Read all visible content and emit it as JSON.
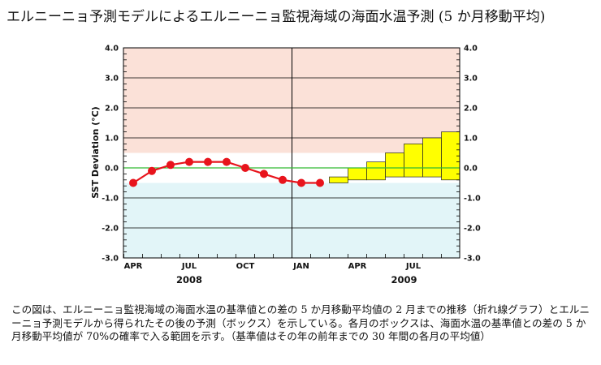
{
  "title": "エルニーニョ予測モデルによるエルニーニョ監視海域の海面水温予測 (5 か月移動平均)",
  "caption": "この図は、エルニーニョ監視海域の海面水温の基準値との差の 5 か月移動平均値の 2 月までの推移（折れ線グラフ）とエルニーニョ予測モデルから得られたその後の予測（ボックス）を示している。各月のボックスは、海面水温の基準値との差の 5 か月移動平均値が 70%の確率で入る範囲を示す。（基準値はその年の前年までの 30 年間の各月の平均値）",
  "colors": {
    "warm_band": "#fbe1d8",
    "cold_band": "#e2f5f8",
    "observed": "#e8141c",
    "forecast_box": "#ffff00",
    "zero_line": "#33bb33",
    "grid": "#000000"
  },
  "chart_data": {
    "type": "line",
    "ylabel": "SST Deviation (°C)",
    "ylim": [
      -3.0,
      4.0
    ],
    "y_ticks": [
      "4.0",
      "3.0",
      "2.0",
      "1.0",
      "0.0",
      "-1.0",
      "-2.0",
      "-3.0"
    ],
    "y_tick_values": [
      4,
      3,
      2,
      1,
      0,
      -1,
      -2,
      -3
    ],
    "x_range_months": [
      0,
      18
    ],
    "month_labels": [
      {
        "label": "APR",
        "month": 3
      },
      {
        "label": "JUL",
        "month": 6
      },
      {
        "label": "OCT",
        "month": 9
      },
      {
        "label": "JAN",
        "month": 12
      },
      {
        "label": "APR",
        "month": 15
      },
      {
        "label": "JUL",
        "month": 18
      }
    ],
    "year_labels": [
      {
        "label": "2008",
        "month": 6
      },
      {
        "label": "2009",
        "month": 17.5
      }
    ],
    "year_boundary_month": 12,
    "normal_band": [
      -0.5,
      0.5
    ],
    "observed_series": {
      "name": "5か月移動平均値",
      "months": [
        3,
        4,
        5,
        6,
        7,
        8,
        9,
        10,
        11,
        12,
        13
      ],
      "values": [
        -0.5,
        -0.1,
        0.1,
        0.2,
        0.2,
        0.2,
        0.0,
        -0.2,
        -0.4,
        -0.5,
        -0.5
      ]
    },
    "forecast_boxes": [
      {
        "month": 14,
        "low": -0.5,
        "high": -0.3
      },
      {
        "month": 15,
        "low": -0.4,
        "high": 0.0
      },
      {
        "month": 16,
        "low": -0.4,
        "high": 0.2
      },
      {
        "month": 17,
        "low": -0.3,
        "high": 0.5
      },
      {
        "month": 18,
        "low": -0.3,
        "high": 0.8
      },
      {
        "month": 19,
        "low": -0.3,
        "high": 1.0
      },
      {
        "month": 20,
        "low": -0.4,
        "high": 1.2
      }
    ]
  }
}
